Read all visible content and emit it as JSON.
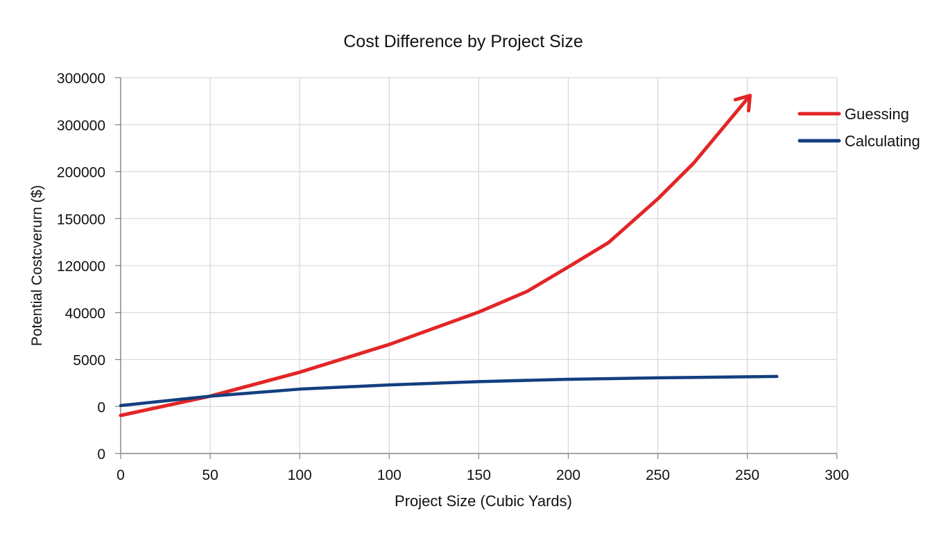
{
  "chart_data": {
    "type": "line",
    "title": "Cost Difference by Project Size",
    "xlabel": "Project Size (Cubic Yards)",
    "ylabel": "Potential Costcverurn ($)",
    "x_tick_labels": [
      "0",
      "50",
      "100",
      "100",
      "150",
      "200",
      "250",
      "250",
      "300"
    ],
    "y_tick_labels": [
      "0",
      "0",
      "5000",
      "40000",
      "120000",
      "150000",
      "200000",
      "300000",
      "300000"
    ],
    "axis_note": "Tick labels are printed non-monotonically; point coordinates are given as tick-index positions (0 = first tick).",
    "grid": true,
    "legend_position": "right",
    "series": [
      {
        "name": "Guessing",
        "color": "#e32526",
        "arrow_end": true,
        "points": [
          [
            0,
            0.81
          ],
          [
            1,
            1.22
          ],
          [
            2,
            1.73
          ],
          [
            3,
            2.32
          ],
          [
            4,
            3.01
          ],
          [
            4.54,
            3.45
          ],
          [
            5,
            3.97
          ],
          [
            5.45,
            4.49
          ],
          [
            6,
            5.42
          ],
          [
            6.4,
            6.18
          ],
          [
            7.03,
            7.62
          ]
        ]
      },
      {
        "name": "Calculating",
        "color": "#123f7f",
        "arrow_end": false,
        "points": [
          [
            0,
            1.02
          ],
          [
            1,
            1.22
          ],
          [
            2,
            1.37
          ],
          [
            3,
            1.46
          ],
          [
            4,
            1.53
          ],
          [
            5,
            1.58
          ],
          [
            6,
            1.61
          ],
          [
            7.33,
            1.64
          ]
        ]
      }
    ]
  }
}
